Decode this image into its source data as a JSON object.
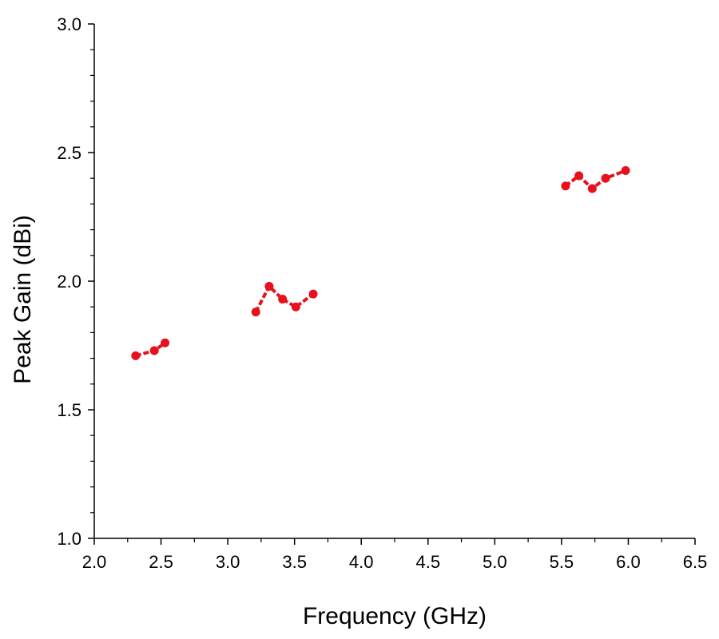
{
  "chart_data": {
    "type": "line",
    "title": "",
    "xlabel": "Frequency (GHz)",
    "ylabel": "Peak Gain (dBi)",
    "xlim": [
      2.0,
      6.5
    ],
    "ylim": [
      1.0,
      3.0
    ],
    "x_ticks": [
      "2.0",
      "2.5",
      "3.0",
      "3.5",
      "4.0",
      "4.5",
      "5.0",
      "5.5",
      "6.0",
      "6.5"
    ],
    "y_ticks": [
      "1.0",
      "1.5",
      "2.0",
      "2.5",
      "3.0"
    ],
    "grid": false,
    "legend": "none",
    "series_color": "#e8101c",
    "series": [
      {
        "x": [
          2.31,
          2.45,
          2.53
        ],
        "y": [
          1.71,
          1.73,
          1.76
        ]
      },
      {
        "x": [
          3.21,
          3.31,
          3.41,
          3.51,
          3.64
        ],
        "y": [
          1.88,
          1.98,
          1.93,
          1.9,
          1.95
        ]
      },
      {
        "x": [
          5.53,
          5.63,
          5.73,
          5.83,
          5.98
        ],
        "y": [
          2.37,
          2.41,
          2.36,
          2.4,
          2.43
        ]
      }
    ]
  }
}
